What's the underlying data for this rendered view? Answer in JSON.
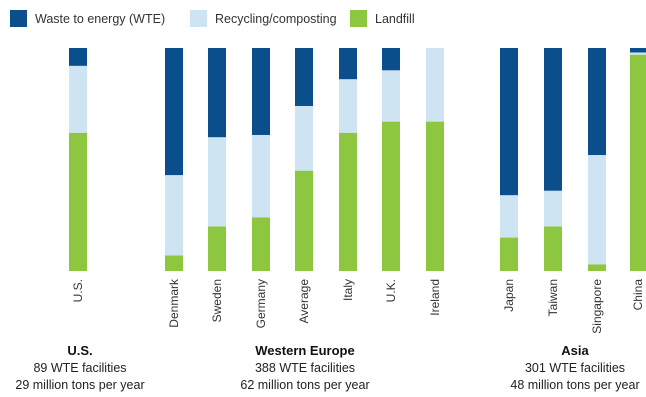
{
  "chart_data": {
    "type": "bar",
    "stacked": true,
    "percent_scale": true,
    "ylim": [
      0,
      100
    ],
    "legend_position": "top-left",
    "categories": [
      "U.S.",
      "Denmark",
      "Sweden",
      "Germany",
      "Average",
      "Italy",
      "U.K.",
      "Ireland",
      "Japan",
      "Taiwan",
      "Singapore",
      "China"
    ],
    "series": [
      {
        "name": "Landfill",
        "color": "#8dc63f",
        "values": [
          62,
          7,
          20,
          24,
          45,
          62,
          67,
          67,
          15,
          20,
          3,
          97
        ]
      },
      {
        "name": "Recycling/composting",
        "color": "#cfe4f2",
        "values": [
          30,
          36,
          40,
          37,
          29,
          24,
          23,
          33,
          19,
          16,
          49,
          1
        ]
      },
      {
        "name": "Waste to energy (WTE)",
        "color": "#0b4e8c",
        "values": [
          8,
          57,
          40,
          39,
          26,
          14,
          10,
          0,
          66,
          64,
          48,
          2
        ]
      }
    ],
    "legend_order": [
      "Waste to energy (WTE)",
      "Recycling/composting",
      "Landfill"
    ],
    "groups": [
      {
        "title": "U.S.",
        "lines": [
          "89 WTE facilities",
          "29 million tons per year"
        ]
      },
      {
        "title": "Western Europe",
        "lines": [
          "388 WTE facilities",
          "62 million tons per year"
        ]
      },
      {
        "title": "Asia",
        "lines": [
          "301 WTE facilities",
          "48 million tons per year"
        ]
      }
    ]
  }
}
